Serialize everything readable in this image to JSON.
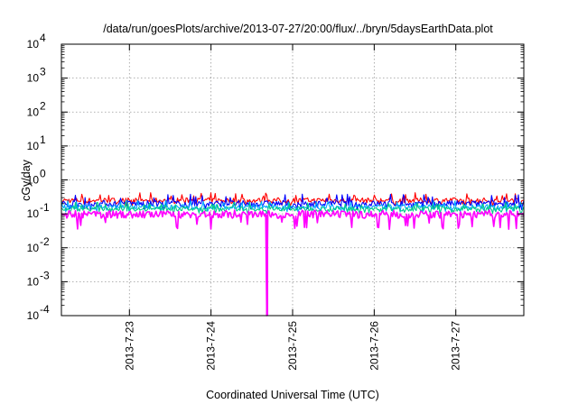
{
  "chart_data": {
    "type": "line",
    "title": "/data/run/goesPlots/archive/2013-07-27/20:00/flux/../bryn/5daysEarthData.plot",
    "xlabel": "Coordinated Universal Time (UTC)",
    "ylabel": "cGy/day",
    "yscale": "log",
    "ylim": [
      0.0001,
      10000
    ],
    "xlim": [
      "2013-07-22 04:00",
      "2013-07-27 20:00"
    ],
    "grid": true,
    "x_ticks": [
      "2013-7-23",
      "2013-7-24",
      "2013-7-25",
      "2013-7-26",
      "2013-7-27"
    ],
    "y_ticks": [
      {
        "base": "10",
        "exp": "-4"
      },
      {
        "base": "10",
        "exp": "-3"
      },
      {
        "base": "10",
        "exp": "-2"
      },
      {
        "base": "10",
        "exp": "-1"
      },
      {
        "base": "10",
        "exp": "0"
      },
      {
        "base": "10",
        "exp": "1"
      },
      {
        "base": "10",
        "exp": "2"
      },
      {
        "base": "10",
        "exp": "3"
      },
      {
        "base": "10",
        "exp": "4"
      }
    ],
    "series": [
      {
        "color": "#ff0000",
        "baseline": 0.25,
        "peak_high": 0.42,
        "low": 0.17
      },
      {
        "color": "#0000ff",
        "baseline": 0.2,
        "peak_high": 0.38,
        "low": 0.13
      },
      {
        "color": "#00aaff",
        "baseline": 0.16,
        "peak_high": 0.26,
        "low": 0.11
      },
      {
        "color": "#00cc88",
        "baseline": 0.14,
        "peak_high": 0.22,
        "low": 0.1
      },
      {
        "color": "#ff00ff",
        "baseline": 0.095,
        "peak_high": 0.13,
        "low": 0.035,
        "dropout": {
          "x": "2013-07-24 16:30",
          "y": 0.0001
        }
      }
    ]
  }
}
